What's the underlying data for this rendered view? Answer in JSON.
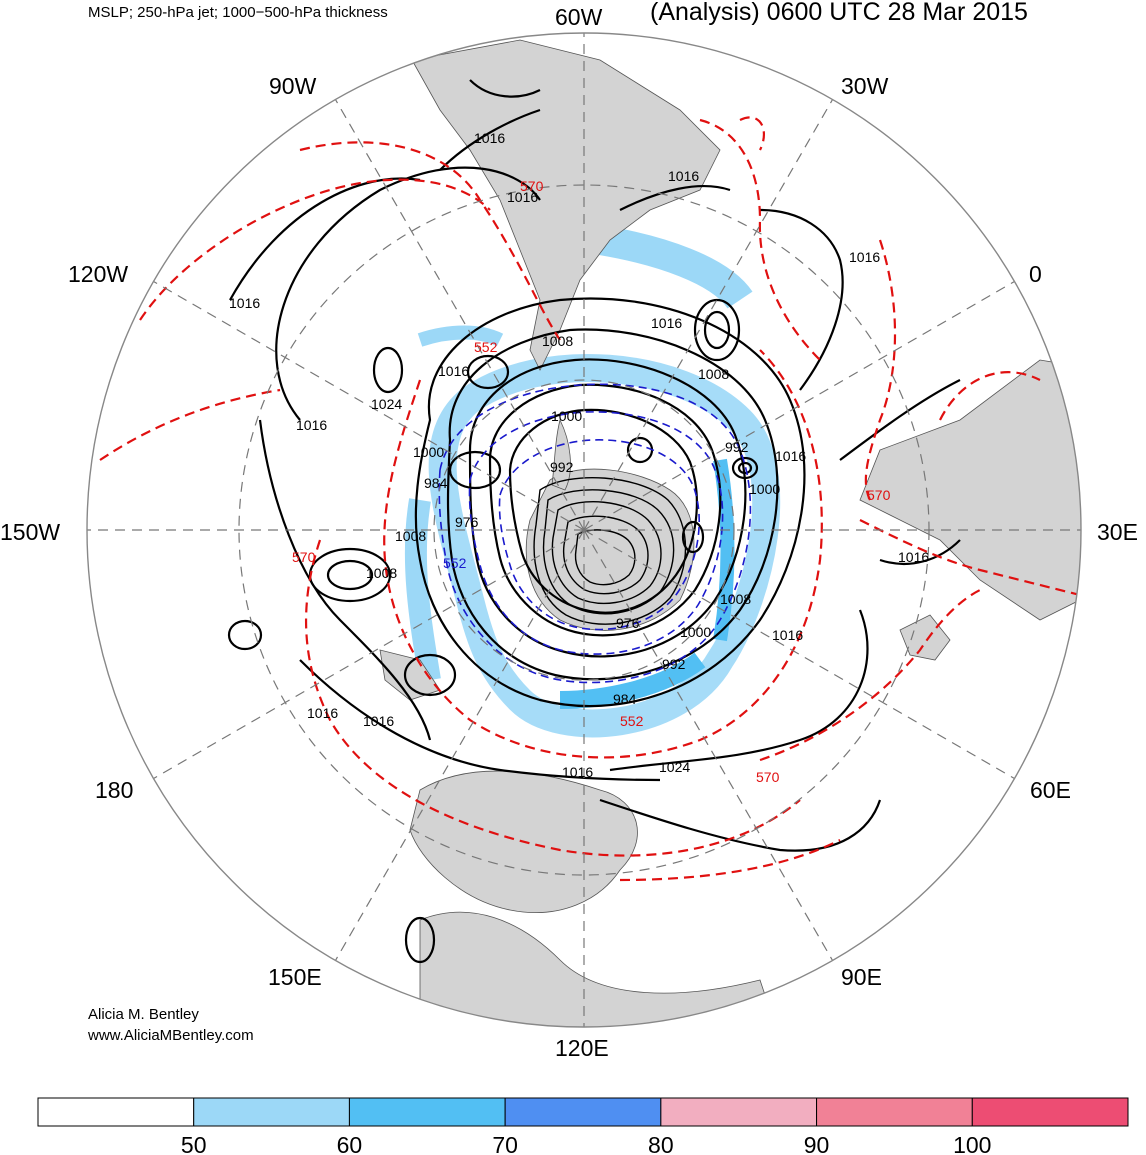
{
  "header": {
    "left": "MSLP; 250-hPa jet; 1000−500-hPa thickness",
    "right": "(Analysis) 0600 UTC 28 Mar 2015"
  },
  "credits": {
    "name": "Alicia M. Bentley",
    "site": "www.AliciaMBentley.com"
  },
  "longitude_labels": [
    "60W",
    "30W",
    "0",
    "30E",
    "60E",
    "90E",
    "120E",
    "150E",
    "180",
    "150W",
    "120W",
    "90W"
  ],
  "pressure_labels": [
    "1016",
    "1016",
    "1016",
    "1016",
    "1016",
    "1016",
    "1016",
    "1016",
    "1016",
    "1016",
    "1016",
    "1016",
    "1016",
    "1016",
    "1024",
    "1024",
    "1008",
    "1008",
    "1008",
    "1008",
    "1008",
    "1000",
    "1000",
    "1000",
    "1000",
    "992",
    "992",
    "992",
    "984",
    "984",
    "976",
    "976"
  ],
  "thickness_labels": [
    "570",
    "570",
    "570",
    "570",
    "552",
    "552",
    "552"
  ],
  "colorbar": {
    "ticks": [
      "50",
      "60",
      "70",
      "80",
      "90",
      "100"
    ],
    "colors": [
      "#ffffff",
      "#9cd8f7",
      "#52bff3",
      "#4f8ff2",
      "#f2aec0",
      "#f18196",
      "#ed4d73"
    ]
  },
  "colors": {
    "land": "#d3d3d3",
    "mslp": "#000000",
    "thickness_warm": "#e01010",
    "thickness_cold": "#1a1acc",
    "jet_light": "#9cd8f7",
    "jet_mid": "#52bff3"
  }
}
